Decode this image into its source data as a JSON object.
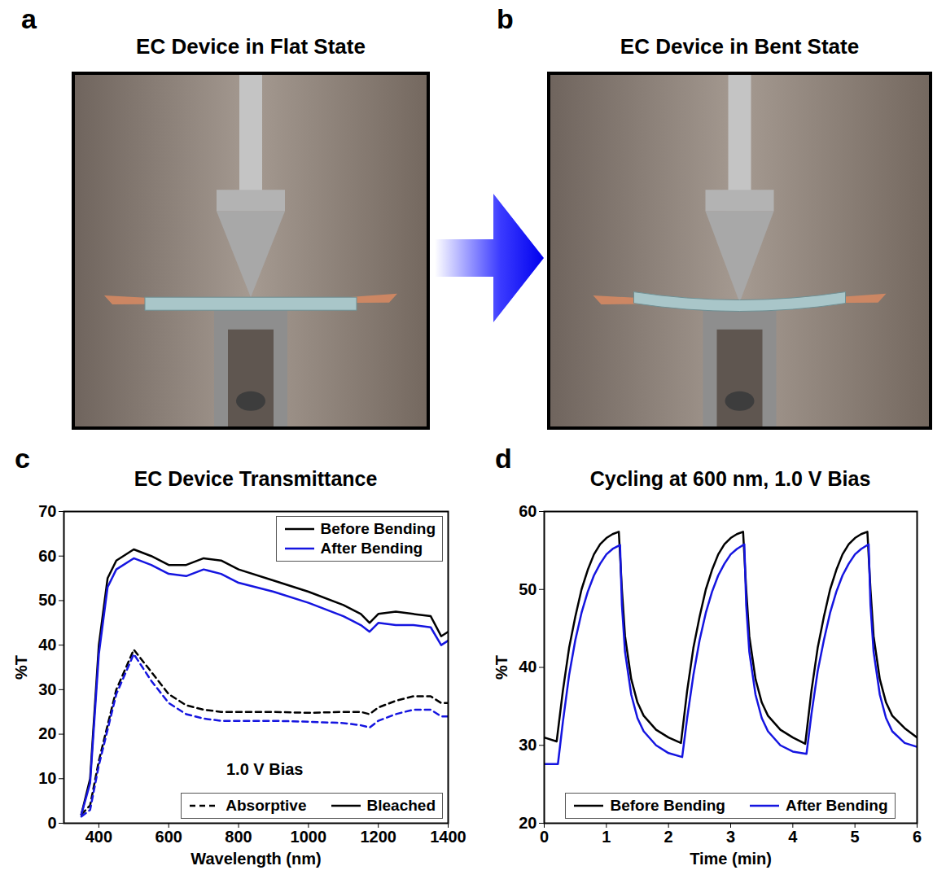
{
  "chart_data": [
    {
      "type": "image",
      "panel": "a",
      "title": "EC Device in Flat State"
    },
    {
      "type": "image",
      "panel": "b",
      "title": "EC Device in Bent State"
    },
    {
      "type": "line",
      "panel": "c",
      "title": "EC Device Transmittance",
      "xlabel": "Wavelength (nm)",
      "ylabel": "%T",
      "xlim": [
        300,
        1400
      ],
      "xticks": [
        400,
        600,
        800,
        1000,
        1200,
        1400
      ],
      "ylim": [
        0,
        70
      ],
      "yticks": [
        0,
        10,
        20,
        30,
        40,
        50,
        60,
        70
      ],
      "grid": false,
      "legend": "upper right",
      "annotations": [
        {
          "text": "1.0 V Bias",
          "x": 875,
          "y": 12
        }
      ],
      "x": [
        350,
        375,
        400,
        425,
        450,
        500,
        550,
        600,
        650,
        700,
        750,
        800,
        900,
        1000,
        1100,
        1150,
        1175,
        1200,
        1250,
        1300,
        1350,
        1380,
        1400
      ],
      "series": [
        {
          "name": "Before Bending",
          "state": "Absorptive",
          "color": "#000000",
          "line_style": "dashed",
          "values": [
            2,
            4,
            14,
            22,
            30,
            39,
            34,
            29,
            26.5,
            25.5,
            25,
            25,
            25,
            24.8,
            25,
            25,
            24.5,
            26,
            27.5,
            28.5,
            28.5,
            27,
            27
          ]
        },
        {
          "name": "After Bending",
          "state": "Absorptive",
          "color": "#1515e0",
          "line_style": "dashed",
          "values": [
            1.5,
            3,
            13,
            21,
            29,
            38,
            32,
            27,
            24.5,
            23.5,
            23,
            23,
            23,
            22.8,
            22.5,
            22,
            21.5,
            23,
            24.5,
            25.5,
            25.5,
            24,
            24
          ]
        },
        {
          "name": "Before Bending",
          "state": "Bleached",
          "color": "#000000",
          "line_style": "solid",
          "values": [
            2,
            10,
            40,
            55,
            59,
            61.5,
            60,
            58,
            58,
            59.5,
            59,
            57,
            54.5,
            52,
            49,
            47,
            45,
            47,
            47.5,
            47,
            46.5,
            42,
            43
          ]
        },
        {
          "name": "After Bending",
          "state": "Bleached",
          "color": "#1515e0",
          "line_style": "solid",
          "values": [
            2,
            9,
            38,
            53,
            57,
            59.5,
            58,
            56,
            55.5,
            57,
            56,
            54,
            52,
            49.5,
            46.5,
            44.5,
            43,
            45,
            44.5,
            44.5,
            44,
            40,
            41
          ]
        }
      ]
    },
    {
      "type": "line",
      "panel": "d",
      "title": "Cycling at 600 nm, 1.0 V Bias",
      "xlabel": "Time (min)",
      "ylabel": "%T",
      "xlim": [
        0,
        6
      ],
      "xticks": [
        0,
        1,
        2,
        3,
        4,
        5,
        6
      ],
      "ylim": [
        20,
        60
      ],
      "yticks": [
        20,
        30,
        40,
        50,
        60
      ],
      "grid": false,
      "legend": "bottom",
      "series": [
        {
          "name": "Before Bending",
          "color": "#000000",
          "line_style": "solid",
          "x": [
            0,
            0.2,
            0.3,
            0.4,
            0.5,
            0.6,
            0.7,
            0.8,
            0.9,
            1.0,
            1.1,
            1.2,
            1.25,
            1.3,
            1.4,
            1.5,
            1.6,
            1.8,
            2.0,
            2.2,
            2.3,
            2.4,
            2.5,
            2.6,
            2.7,
            2.8,
            2.9,
            3.0,
            3.1,
            3.2,
            3.25,
            3.3,
            3.4,
            3.5,
            3.6,
            3.8,
            4.0,
            4.2,
            4.3,
            4.4,
            4.5,
            4.6,
            4.7,
            4.8,
            4.9,
            5.0,
            5.1,
            5.2,
            5.25,
            5.3,
            5.4,
            5.5,
            5.6,
            5.8,
            6.0
          ],
          "values": [
            31,
            30.5,
            37,
            42.5,
            46.5,
            50,
            52.5,
            54.5,
            55.8,
            56.6,
            57.1,
            57.4,
            50,
            44,
            38.5,
            35.5,
            33.8,
            32,
            31,
            30.3,
            37,
            42.5,
            46.5,
            50,
            52.5,
            54.5,
            55.8,
            56.6,
            57.1,
            57.4,
            50,
            44,
            38.5,
            35.5,
            33.8,
            32,
            31,
            30.2,
            37,
            42.5,
            46.5,
            50,
            52.5,
            54.5,
            55.8,
            56.6,
            57.1,
            57.4,
            50,
            44,
            38.5,
            35.5,
            33.8,
            32.2,
            31
          ]
        },
        {
          "name": "After Bending",
          "color": "#1515e0",
          "line_style": "solid",
          "x": [
            0,
            0.22,
            0.3,
            0.4,
            0.5,
            0.6,
            0.7,
            0.8,
            0.9,
            1.0,
            1.1,
            1.22,
            1.25,
            1.3,
            1.4,
            1.5,
            1.6,
            1.8,
            2.0,
            2.22,
            2.3,
            2.4,
            2.5,
            2.6,
            2.7,
            2.8,
            2.9,
            3.0,
            3.1,
            3.22,
            3.25,
            3.3,
            3.4,
            3.5,
            3.6,
            3.8,
            4.0,
            4.22,
            4.3,
            4.4,
            4.5,
            4.6,
            4.7,
            4.8,
            4.9,
            5.0,
            5.1,
            5.22,
            5.25,
            5.3,
            5.4,
            5.5,
            5.6,
            5.8,
            6.0
          ],
          "values": [
            27.6,
            27.6,
            33,
            39,
            43.5,
            47,
            49.7,
            51.8,
            53.3,
            54.5,
            55.2,
            55.7,
            48,
            42,
            36.5,
            33.5,
            31.8,
            30,
            29,
            28.5,
            33.5,
            39,
            43.5,
            47,
            49.7,
            51.8,
            53.3,
            54.5,
            55.2,
            55.8,
            48,
            42,
            36.5,
            33.5,
            31.8,
            30,
            29.2,
            28.9,
            34,
            39.5,
            43.5,
            47,
            49.7,
            51.8,
            53.3,
            54.5,
            55.2,
            55.8,
            48,
            42,
            36.5,
            33.5,
            31.8,
            30.3,
            29.8
          ]
        }
      ]
    }
  ]
}
